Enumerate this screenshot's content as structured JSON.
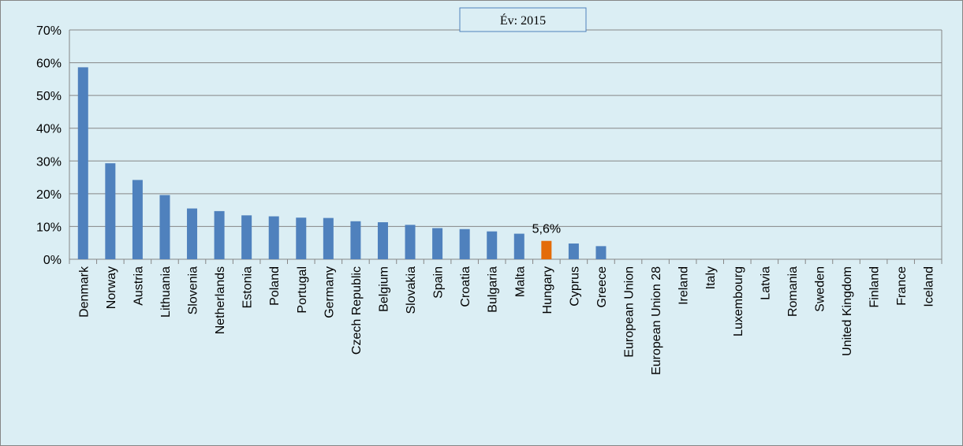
{
  "chart_data": {
    "type": "bar",
    "title": "Év: 2015",
    "categories": [
      "Denmark",
      "Norway",
      "Austria",
      "Lithuania",
      "Slovenia",
      "Netherlands",
      "Estonia",
      "Poland",
      "Portugal",
      "Germany",
      "Czech Republic",
      "Belgium",
      "Slovakia",
      "Spain",
      "Croatia",
      "Bulgaria",
      "Malta",
      "Hungary",
      "Cyprus",
      "Greece",
      "European Union",
      "European Union 28",
      "Ireland",
      "Italy",
      "Luxembourg",
      "Latvia",
      "Romania",
      "Sweden",
      "United Kingdom",
      "Finland",
      "France",
      "Iceland"
    ],
    "values": [
      58.6,
      29.3,
      24.2,
      19.6,
      15.5,
      14.7,
      13.4,
      13.1,
      12.7,
      12.6,
      11.6,
      11.3,
      10.5,
      9.5,
      9.2,
      8.5,
      7.8,
      5.6,
      4.8,
      4.0,
      null,
      null,
      null,
      null,
      null,
      null,
      null,
      null,
      null,
      null,
      null,
      null
    ],
    "value_labels": [
      null,
      null,
      null,
      null,
      null,
      null,
      null,
      null,
      null,
      null,
      null,
      null,
      null,
      null,
      null,
      null,
      null,
      "5,6%",
      null,
      null,
      null,
      null,
      null,
      null,
      null,
      null,
      null,
      null,
      null,
      null,
      null,
      null
    ],
    "colors": [
      "#4f81bd",
      "#4f81bd",
      "#4f81bd",
      "#4f81bd",
      "#4f81bd",
      "#4f81bd",
      "#4f81bd",
      "#4f81bd",
      "#4f81bd",
      "#4f81bd",
      "#4f81bd",
      "#4f81bd",
      "#4f81bd",
      "#4f81bd",
      "#4f81bd",
      "#4f81bd",
      "#4f81bd",
      "#e46c0a",
      "#4f81bd",
      "#4f81bd",
      "#4f81bd",
      "#4f81bd",
      "#4f81bd",
      "#4f81bd",
      "#4f81bd",
      "#4f81bd",
      "#4f81bd",
      "#4f81bd",
      "#4f81bd",
      "#4f81bd",
      "#4f81bd",
      "#4f81bd"
    ],
    "ylim": [
      0,
      70
    ],
    "yticks": [
      {
        "value": 0,
        "label": "0%"
      },
      {
        "value": 10,
        "label": "10%"
      },
      {
        "value": 20,
        "label": "20%"
      },
      {
        "value": 30,
        "label": "30%"
      },
      {
        "value": 40,
        "label": "40%"
      },
      {
        "value": 50,
        "label": "50%"
      },
      {
        "value": 60,
        "label": "60%"
      },
      {
        "value": 70,
        "label": "70%"
      }
    ],
    "grid": true
  }
}
